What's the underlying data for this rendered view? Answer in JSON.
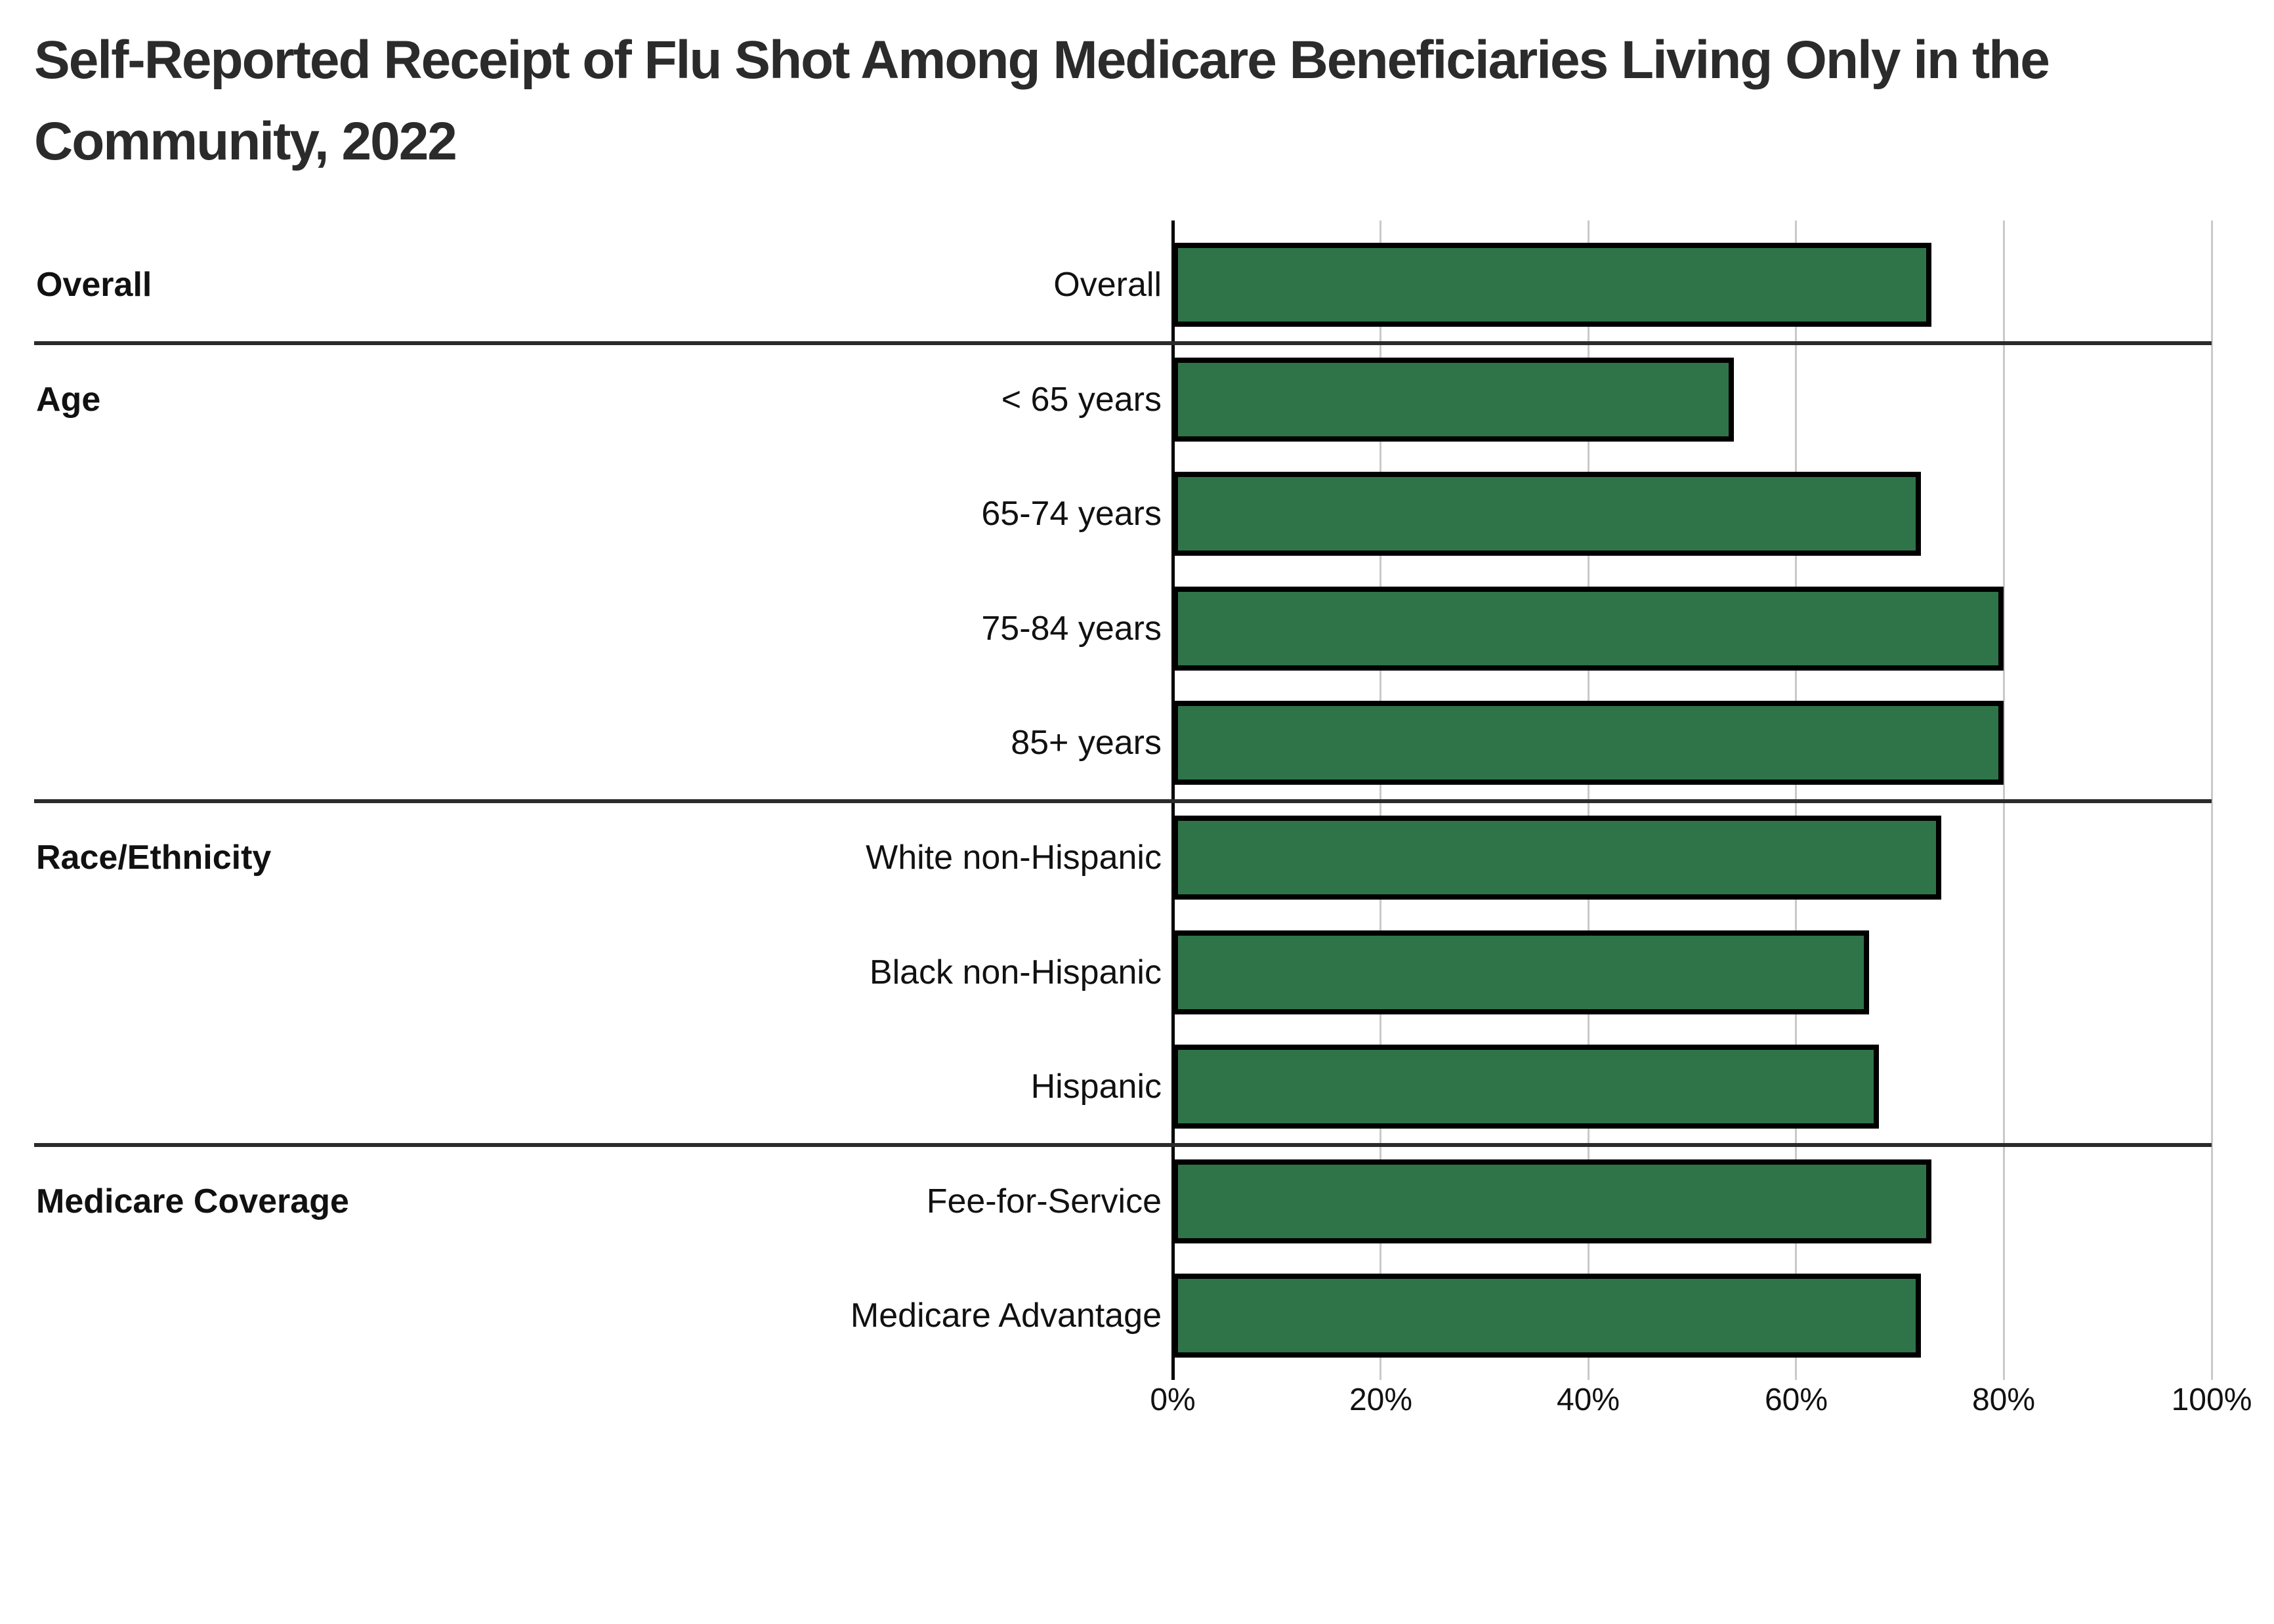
{
  "title": "Self-Reported Receipt of Flu Shot Among Medicare Beneficiaries Living Only in the Community, 2022",
  "title_lines": [
    "Self-Reported Receipt of Flu Shot Among Medicare Beneficiaries Living Only in the",
    "Community, 2022"
  ],
  "chart_data": {
    "type": "bar",
    "orientation": "horizontal",
    "title": "Self-Reported Receipt of Flu Shot Among Medicare Beneficiaries Living Only in the Community, 2022",
    "unit": "percent",
    "xlim": [
      0,
      100
    ],
    "grid": "vertical",
    "legend": "none",
    "axis_ticks": [
      {
        "value": 0,
        "label": "0%"
      },
      {
        "value": 20,
        "label": "20%"
      },
      {
        "value": 40,
        "label": "40%"
      },
      {
        "value": 60,
        "label": "60%"
      },
      {
        "value": 80,
        "label": "80%"
      },
      {
        "value": 100,
        "label": "100%"
      }
    ],
    "sections": [
      {
        "label": "Overall",
        "rows": [
          {
            "label": "Overall",
            "value": 73
          }
        ]
      },
      {
        "label": "Age",
        "rows": [
          {
            "label": "< 65 years",
            "value": 54
          },
          {
            "label": "65-74 years",
            "value": 72
          },
          {
            "label": "75-84 years",
            "value": 80
          },
          {
            "label": "85+ years",
            "value": 80
          }
        ]
      },
      {
        "label": "Race/Ethnicity",
        "rows": [
          {
            "label": "White non-Hispanic",
            "value": 74
          },
          {
            "label": "Black non-Hispanic",
            "value": 67
          },
          {
            "label": "Hispanic",
            "value": 68
          }
        ]
      },
      {
        "label": "Medicare Coverage",
        "rows": [
          {
            "label": "Fee-for-Service",
            "value": 73
          },
          {
            "label": "Medicare Advantage",
            "value": 72
          }
        ]
      }
    ],
    "colors": {
      "bar_fill": "#2f7449",
      "bar_border": "#000000",
      "gridline": "#c9c9c9",
      "zero_axis": "#000000",
      "section_divider": "#2b2b2b",
      "title_text": "#2b2b2b",
      "label_text": "#111111",
      "background": "#ffffff"
    }
  }
}
